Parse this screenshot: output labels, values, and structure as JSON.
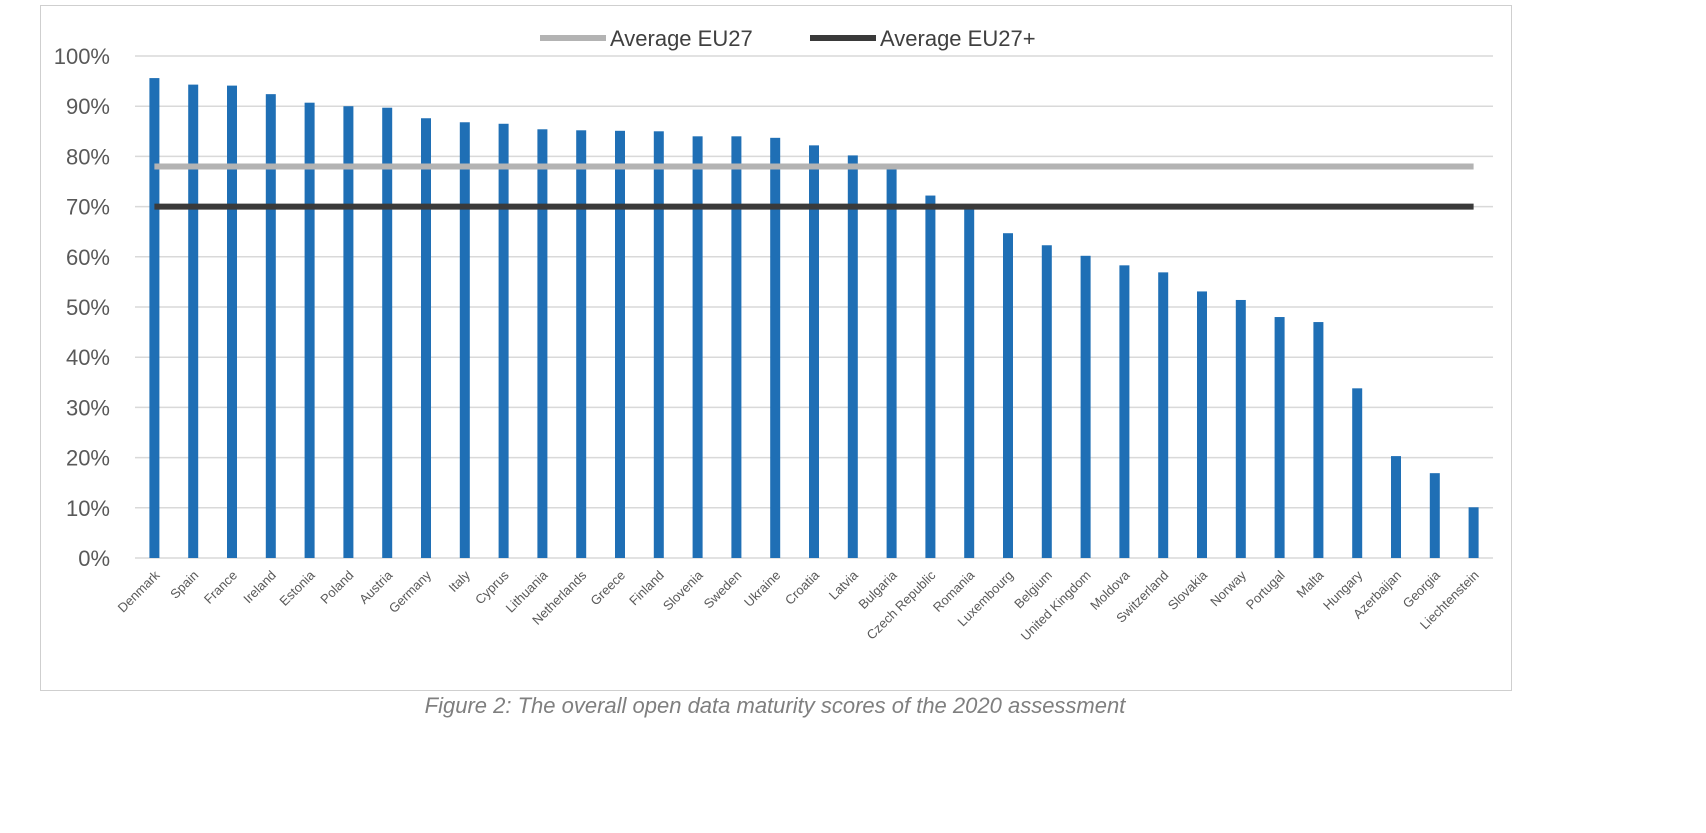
{
  "chart_data": {
    "type": "bar",
    "title": "",
    "xlabel": "",
    "ylabel": "",
    "ylim": [
      0,
      100
    ],
    "y_ticks": [
      "0%",
      "10%",
      "20%",
      "30%",
      "40%",
      "50%",
      "60%",
      "70%",
      "80%",
      "90%",
      "100%"
    ],
    "grid": true,
    "legend_placement": "top",
    "bar_color": "#1f6fb5",
    "categories": [
      "Denmark",
      "Spain",
      "France",
      "Ireland",
      "Estonia",
      "Poland",
      "Austria",
      "Germany",
      "Italy",
      "Cyprus",
      "Lithuania",
      "Netherlands",
      "Greece",
      "Finland",
      "Slovenia",
      "Sweden",
      "Ukraine",
      "Croatia",
      "Latvia",
      "Bulgaria",
      "Czech Republic",
      "Romania",
      "Luxembourg",
      "Belgium",
      "United Kingdom",
      "Moldova",
      "Switzerland",
      "Slovakia",
      "Norway",
      "Portugal",
      "Malta",
      "Hungary",
      "Azerbaijan",
      "Georgia",
      "Liechtenstein"
    ],
    "values": [
      95.6,
      94.3,
      94.1,
      92.4,
      90.7,
      90.0,
      89.7,
      87.6,
      86.8,
      86.5,
      85.4,
      85.2,
      85.1,
      85.0,
      84.0,
      84.0,
      83.7,
      82.2,
      80.2,
      78.0,
      72.2,
      69.5,
      64.7,
      62.3,
      60.2,
      58.3,
      56.9,
      53.1,
      51.4,
      48.0,
      47.0,
      33.8,
      20.3,
      16.9,
      10.1
    ],
    "reference_lines": [
      {
        "name": "Average EU27",
        "value": 78,
        "color": "#b3b3b3"
      },
      {
        "name": "Average EU27+",
        "value": 70,
        "color": "#3a3a3a"
      }
    ]
  },
  "caption": "Figure 2: The overall open data maturity scores of the 2020 assessment"
}
